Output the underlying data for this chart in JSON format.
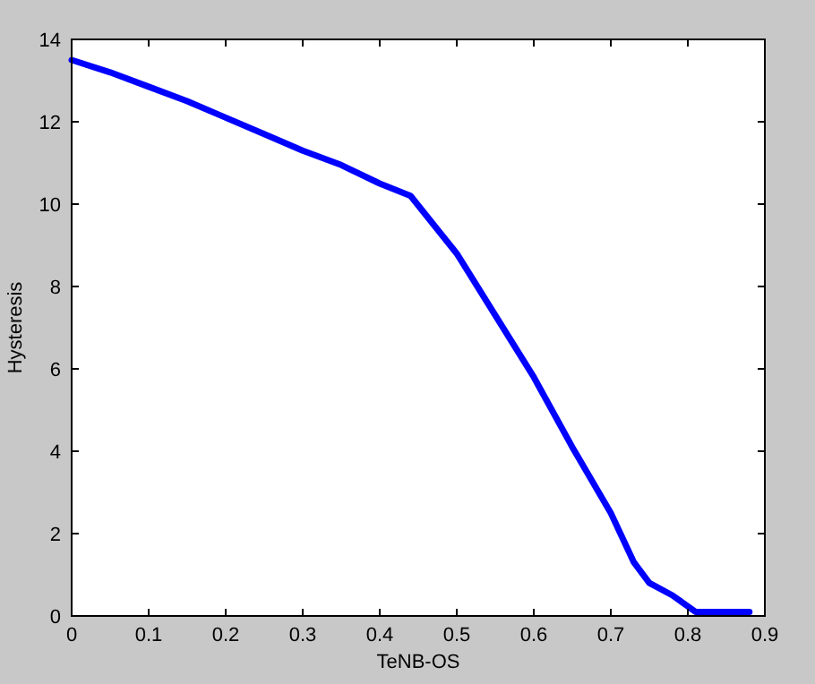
{
  "chart_data": {
    "type": "line",
    "xlabel": "TeNB-OS",
    "ylabel": "Hysteresis",
    "xlim": [
      0,
      0.9
    ],
    "xticks": [
      0,
      0.1,
      0.2,
      0.3,
      0.4,
      0.5,
      0.6,
      0.7,
      0.8,
      0.9
    ],
    "ylim": [
      0,
      14
    ],
    "yticks": [
      0,
      2,
      4,
      6,
      8,
      10,
      12,
      14
    ],
    "grid": false,
    "marker": "none",
    "line_style": "solid",
    "series": [
      {
        "color": "#0000ff",
        "x": [
          0,
          0.05,
          0.1,
          0.15,
          0.2,
          0.25,
          0.3,
          0.35,
          0.4,
          0.44,
          0.47,
          0.5,
          0.55,
          0.6,
          0.65,
          0.7,
          0.73,
          0.75,
          0.78,
          0.81,
          0.88
        ],
        "values": [
          13.5,
          13.2,
          12.85,
          12.5,
          12.1,
          11.7,
          11.3,
          10.95,
          10.5,
          10.2,
          9.5,
          8.8,
          7.3,
          5.8,
          4.1,
          2.5,
          1.3,
          0.8,
          0.5,
          0.1,
          0.1
        ]
      }
    ]
  }
}
